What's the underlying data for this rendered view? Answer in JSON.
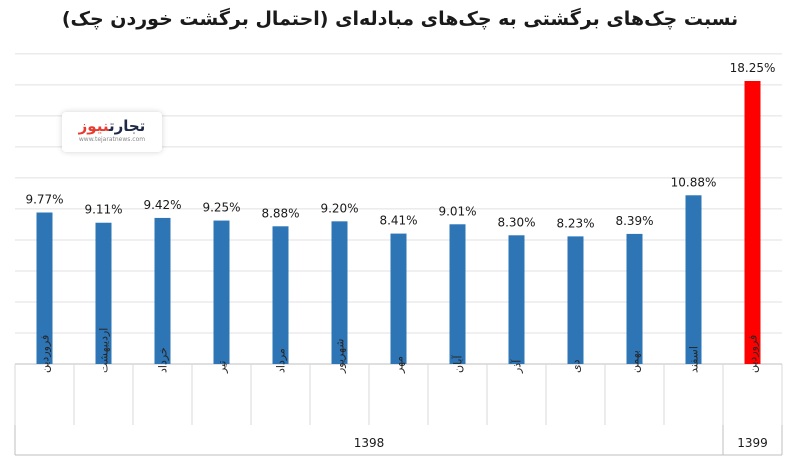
{
  "watermark": {
    "part1": "تجارت",
    "part2": "نیوز",
    "url": "www.tejaratnews.com"
  },
  "chart_data": {
    "type": "bar",
    "title": "نسبت چک‌های برگشتی به چک‌های مبادله‌ای (احتمال برگشت خوردن چک)",
    "categories": [
      "فروردین",
      "اردیبهشت",
      "خرداد",
      "تیر",
      "مرداد",
      "شهریور",
      "مهر",
      "آبان",
      "آذر",
      "دی",
      "بهمن",
      "اسفند",
      "فروردین"
    ],
    "values": [
      9.77,
      9.11,
      9.42,
      9.25,
      8.88,
      9.2,
      8.41,
      9.01,
      8.3,
      8.23,
      8.39,
      10.88,
      18.25
    ],
    "value_labels": [
      "9.77%",
      "9.11%",
      "9.42%",
      "9.25%",
      "8.88%",
      "9.20%",
      "8.41%",
      "9.01%",
      "8.30%",
      "8.23%",
      "8.39%",
      "10.88%",
      "18.25%"
    ],
    "groups": [
      {
        "label": "1398",
        "count": 12
      },
      {
        "label": "1399",
        "count": 1
      }
    ],
    "colors": {
      "default": "#2e75b6",
      "highlight": "#ff0000"
    },
    "highlight_index": 12,
    "ylim": [
      0,
      20
    ],
    "grid": true,
    "xlabel": "",
    "ylabel": ""
  }
}
